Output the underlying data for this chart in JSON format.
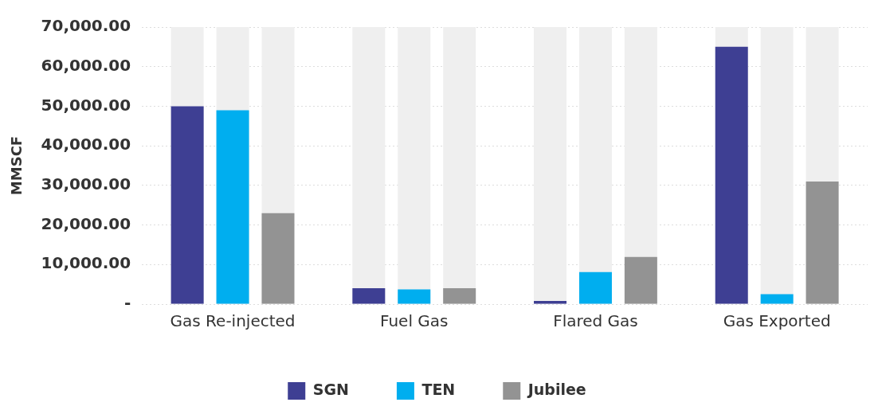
{
  "chart_data": {
    "type": "bar",
    "ylabel": "MMSCF",
    "categories": [
      "Gas Re-injected",
      "Fuel Gas",
      "Flared Gas",
      "Gas Exported"
    ],
    "series": [
      {
        "name": "SGN",
        "color": "#3e3f93",
        "values": [
          50000,
          4000,
          800,
          65000
        ]
      },
      {
        "name": "TEN",
        "color": "#00aeef",
        "values": [
          49000,
          3700,
          8100,
          2500
        ]
      },
      {
        "name": "Jubilee",
        "color": "#939393",
        "values": [
          23000,
          4000,
          11900,
          31000
        ]
      }
    ],
    "ylim": [
      0,
      70000
    ],
    "yticks": [
      {
        "value": 0,
        "label": "-"
      },
      {
        "value": 10000,
        "label": "10,000.00"
      },
      {
        "value": 20000,
        "label": "20,000.00"
      },
      {
        "value": 30000,
        "label": "30,000.00"
      },
      {
        "value": 40000,
        "label": "40,000.00"
      },
      {
        "value": 50000,
        "label": "50,000.00"
      },
      {
        "value": 60000,
        "label": "60,000.00"
      },
      {
        "value": 70000,
        "label": "70,000.00"
      }
    ],
    "grid": "y",
    "legend": "bottom"
  }
}
